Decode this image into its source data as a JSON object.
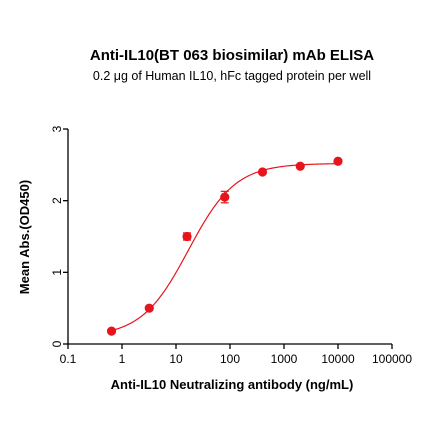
{
  "chart_data": {
    "type": "scatter",
    "title": "Anti-IL10(BT 063 biosimilar) mAb ELISA",
    "subtitle": "0.2 μg of Human IL10, hFc tagged protein per well",
    "xlabel": "Anti-IL10 Neutralizing antibody (ng/mL)",
    "ylabel": "Mean Abs.(OD450)",
    "xscale": "log",
    "xlim": [
      0.1,
      100000
    ],
    "ylim": [
      0,
      3
    ],
    "x_ticks": [
      0.1,
      10,
      1000,
      100000
    ],
    "x_tick_labels": [
      "0.1",
      "1",
      "10",
      "100",
      "1000",
      "10000",
      "100000"
    ],
    "x_tick_values": [
      0.1,
      1,
      10,
      100,
      1000,
      10000,
      100000
    ],
    "y_tick_labels": [
      "0",
      "1",
      "2",
      "3"
    ],
    "y_tick_values": [
      0,
      1,
      2,
      3
    ],
    "series": [
      {
        "color": "#e8141b",
        "points": [
          {
            "x": 0.64,
            "y": 0.18,
            "err": 0.0
          },
          {
            "x": 3.2,
            "y": 0.5,
            "err": 0.0
          },
          {
            "x": 16,
            "y": 1.5,
            "err": 0.05
          },
          {
            "x": 80,
            "y": 2.05,
            "err": 0.08
          },
          {
            "x": 400,
            "y": 2.4,
            "err": 0.0
          },
          {
            "x": 2000,
            "y": 2.48,
            "err": 0.0
          },
          {
            "x": 10000,
            "y": 2.55,
            "err": 0.0
          }
        ],
        "fit": {
          "bottom": 0.1,
          "top": 2.52,
          "ec50": 17,
          "hill": 1.0,
          "x_range": [
            0.64,
            10000
          ]
        }
      }
    ],
    "grid": false,
    "legend": "none"
  }
}
